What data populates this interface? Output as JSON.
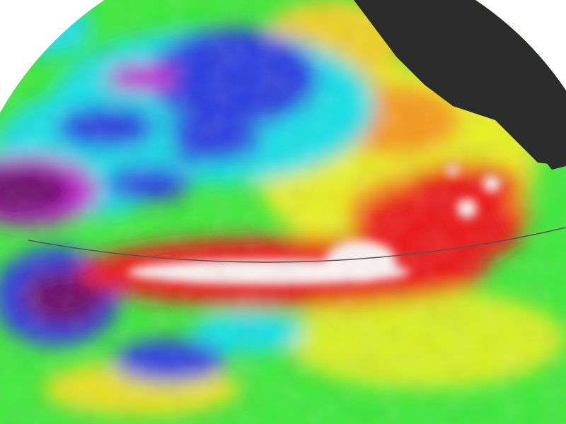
{
  "image": {
    "subject": "globe-sea-surface-anomaly",
    "colors": {
      "background": "#ffffff",
      "land": "#2b2b2b",
      "base": "#3ee83a",
      "cyan": "#19e0e6",
      "blue": "#2a3de0",
      "purple": "#6a0a6a",
      "magenta": "#c31ad0",
      "yellow": "#e8f020",
      "orange": "#f59a1a",
      "red": "#ec1616",
      "white": "#fbf3f3",
      "equator_line": "#555555"
    }
  }
}
